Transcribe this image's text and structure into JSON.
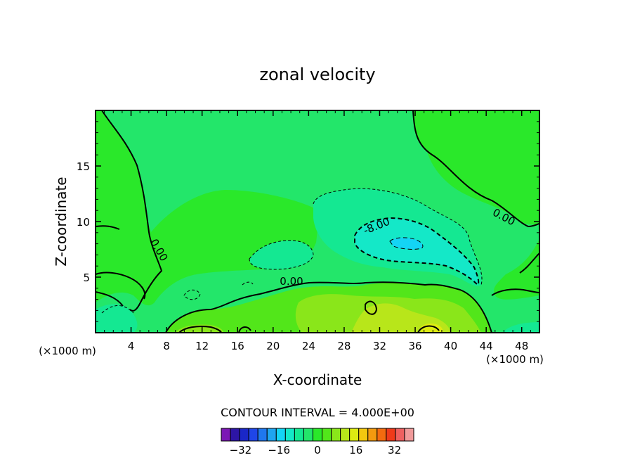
{
  "chart_data": {
    "type": "filled_contour",
    "title": "zonal velocity",
    "xlabel": "X-coordinate",
    "ylabel": "Z-coordinate",
    "x_unit": "(×1000 m)",
    "y_unit": "(×1000 m)",
    "xlim": [
      0,
      50
    ],
    "ylim": [
      0,
      20
    ],
    "x_ticks": [
      4,
      8,
      12,
      16,
      20,
      24,
      28,
      32,
      36,
      40,
      44,
      48
    ],
    "y_ticks": [
      5,
      10,
      15
    ],
    "contour_interval_text": "CONTOUR INTERVAL = 4.000E+00",
    "contour_interval": 4,
    "contour_labels": [
      {
        "text": "0.00",
        "x": 7,
        "z": 7.5
      },
      {
        "text": "0.00",
        "x": 22.5,
        "z": 4.6
      },
      {
        "text": "0.00",
        "x": 46.3,
        "z": 10.1
      },
      {
        "text": "-8.00",
        "x": 31.5,
        "z": 9.6
      }
    ],
    "colorbar": {
      "levels": [
        -40,
        -36,
        -32,
        -28,
        -24,
        -20,
        -16,
        -12,
        -8,
        -4,
        0,
        4,
        8,
        12,
        16,
        20,
        24,
        28,
        32,
        36,
        40
      ],
      "colors": [
        "#7b17b5",
        "#2d15a6",
        "#1a27c8",
        "#1f46e8",
        "#1f78ee",
        "#1fa5f0",
        "#14d4f5",
        "#14e8c8",
        "#14e892",
        "#23e66a",
        "#2ae82a",
        "#52e61a",
        "#8ae61a",
        "#b8e61a",
        "#ddeb12",
        "#f3c70f",
        "#f39a0f",
        "#f36b0f",
        "#ef3a1a",
        "#ee6060",
        "#f09a9a"
      ],
      "tick_labels": [
        "-32",
        "-16",
        "0",
        "16",
        "32"
      ],
      "tick_values": [
        -32,
        -16,
        0,
        16,
        32
      ]
    },
    "regions": [
      {
        "value": 2,
        "color": "#2ae82a"
      },
      {
        "value": -2,
        "color": "#23e66a"
      },
      {
        "value": -6,
        "color": "#14e892"
      },
      {
        "value": -10,
        "color": "#14e8c8"
      },
      {
        "value": 6,
        "color": "#52e61a"
      },
      {
        "value": 10,
        "color": "#8ae61a"
      },
      {
        "value": 14,
        "color": "#b8e61a"
      },
      {
        "value": 18,
        "color": "#ddeb12"
      }
    ]
  }
}
